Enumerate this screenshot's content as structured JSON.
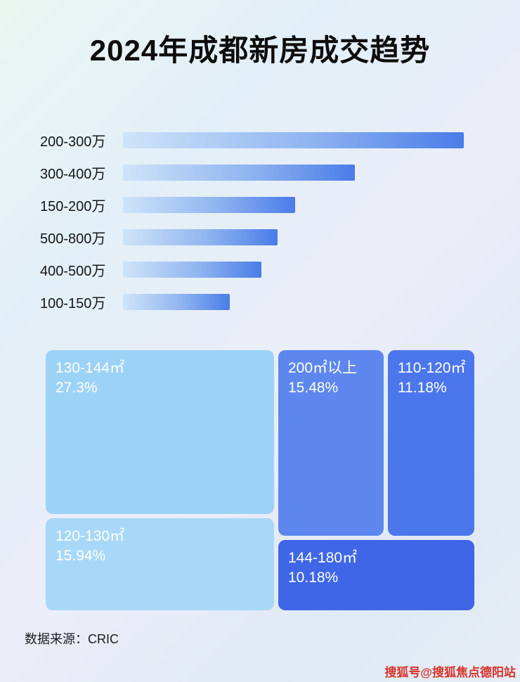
{
  "page": {
    "title": "2024年成都新房成交趋势",
    "source": "数据来源：CRIC",
    "watermark": "搜狐号@搜狐焦点德阳站"
  },
  "chart_data": [
    {
      "type": "bar",
      "orientation": "horizontal",
      "title": "2024年成都新房成交趋势",
      "categories": [
        "200-300万",
        "300-400万",
        "150-200万",
        "500-800万",
        "400-500万",
        "100-150万"
      ],
      "values_relative_pct": [
        100,
        68,
        50.5,
        45.4,
        40.6,
        31.3
      ],
      "axis": "none",
      "grid": false,
      "bar_gradient": [
        "#cfe4f9",
        "#4a7ce8"
      ]
    },
    {
      "type": "treemap",
      "items": [
        {
          "label": "130-144㎡",
          "value_pct": 27.3,
          "value_text": "27.3%",
          "color": "#9dd2f7"
        },
        {
          "label": "120-130㎡",
          "value_pct": 15.94,
          "value_text": "15.94%",
          "color": "#a7d8f8"
        },
        {
          "label": "200㎡以上",
          "value_pct": 15.48,
          "value_text": "15.48%",
          "color": "#5d87ee"
        },
        {
          "label": "110-120㎡",
          "value_pct": 11.18,
          "value_text": "11.18%",
          "color": "#4b76ec"
        },
        {
          "label": "144-180㎡",
          "value_pct": 10.18,
          "value_text": "10.18%",
          "color": "#3f66e7"
        }
      ]
    }
  ]
}
